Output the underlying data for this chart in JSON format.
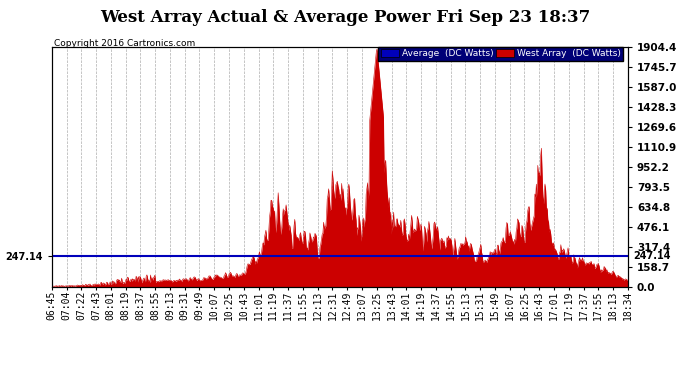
{
  "title": "West Array Actual & Average Power Fri Sep 23 18:37",
  "copyright": "Copyright 2016 Cartronics.com",
  "legend_avg": "Average  (DC Watts)",
  "legend_west": "West Array  (DC Watts)",
  "ylabel_right_values": [
    0.0,
    158.7,
    317.4,
    476.1,
    634.8,
    793.5,
    952.2,
    1110.9,
    1269.6,
    1428.3,
    1587.0,
    1745.7,
    1904.4
  ],
  "avg_line_value": 247.14,
  "avg_line_label": "247.14",
  "ymax": 1904.4,
  "ymin": 0.0,
  "background_color": "#ffffff",
  "fill_color": "#cc0000",
  "avg_line_color": "#0000bb",
  "grid_color": "#999999",
  "title_fontsize": 12,
  "tick_fontsize": 7,
  "x_labels": [
    "06:45",
    "07:04",
    "07:22",
    "07:43",
    "08:01",
    "08:19",
    "08:37",
    "08:55",
    "09:13",
    "09:31",
    "09:49",
    "10:07",
    "10:25",
    "10:43",
    "11:01",
    "11:19",
    "11:37",
    "11:55",
    "12:13",
    "12:31",
    "12:49",
    "13:07",
    "13:25",
    "13:43",
    "14:01",
    "14:19",
    "14:37",
    "14:55",
    "15:13",
    "15:31",
    "15:49",
    "16:07",
    "16:25",
    "16:43",
    "17:01",
    "17:19",
    "17:37",
    "17:55",
    "18:13",
    "18:34"
  ],
  "power_values": [
    5,
    8,
    12,
    20,
    35,
    55,
    60,
    70,
    75,
    80,
    90,
    110,
    120,
    130,
    380,
    870,
    750,
    560,
    480,
    1020,
    940,
    680,
    1904,
    680,
    620,
    590,
    530,
    480,
    450,
    420,
    380,
    680,
    620,
    1300,
    480,
    320,
    280,
    220,
    150,
    60
  ]
}
